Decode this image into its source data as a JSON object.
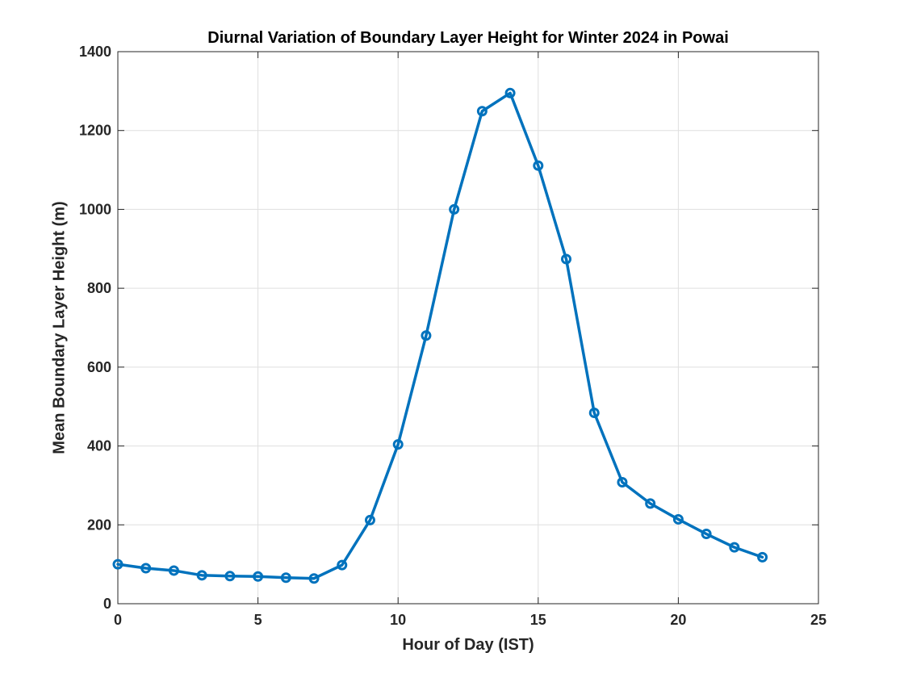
{
  "chart_data": {
    "type": "line",
    "title": "Diurnal Variation of Boundary Layer Height for Winter 2024 in Powai",
    "xlabel": "Hour of Day (IST)",
    "ylabel": "Mean Boundary Layer Height (m)",
    "xlim": [
      0,
      25
    ],
    "ylim": [
      0,
      1400
    ],
    "xticks": [
      0,
      5,
      10,
      15,
      20,
      25
    ],
    "yticks": [
      0,
      200,
      400,
      600,
      800,
      1000,
      1200,
      1400
    ],
    "grid": true,
    "marker": "circle",
    "color": "#0072BD",
    "x": [
      0,
      1,
      2,
      3,
      4,
      5,
      6,
      7,
      8,
      9,
      10,
      11,
      12,
      13,
      14,
      15,
      16,
      17,
      18,
      19,
      20,
      21,
      22,
      23
    ],
    "y": [
      100,
      90,
      84,
      72,
      70,
      69,
      66,
      64,
      98,
      212,
      404,
      680,
      1000,
      1249,
      1295,
      1111,
      874,
      484,
      308,
      254,
      214,
      177,
      143,
      118
    ]
  }
}
